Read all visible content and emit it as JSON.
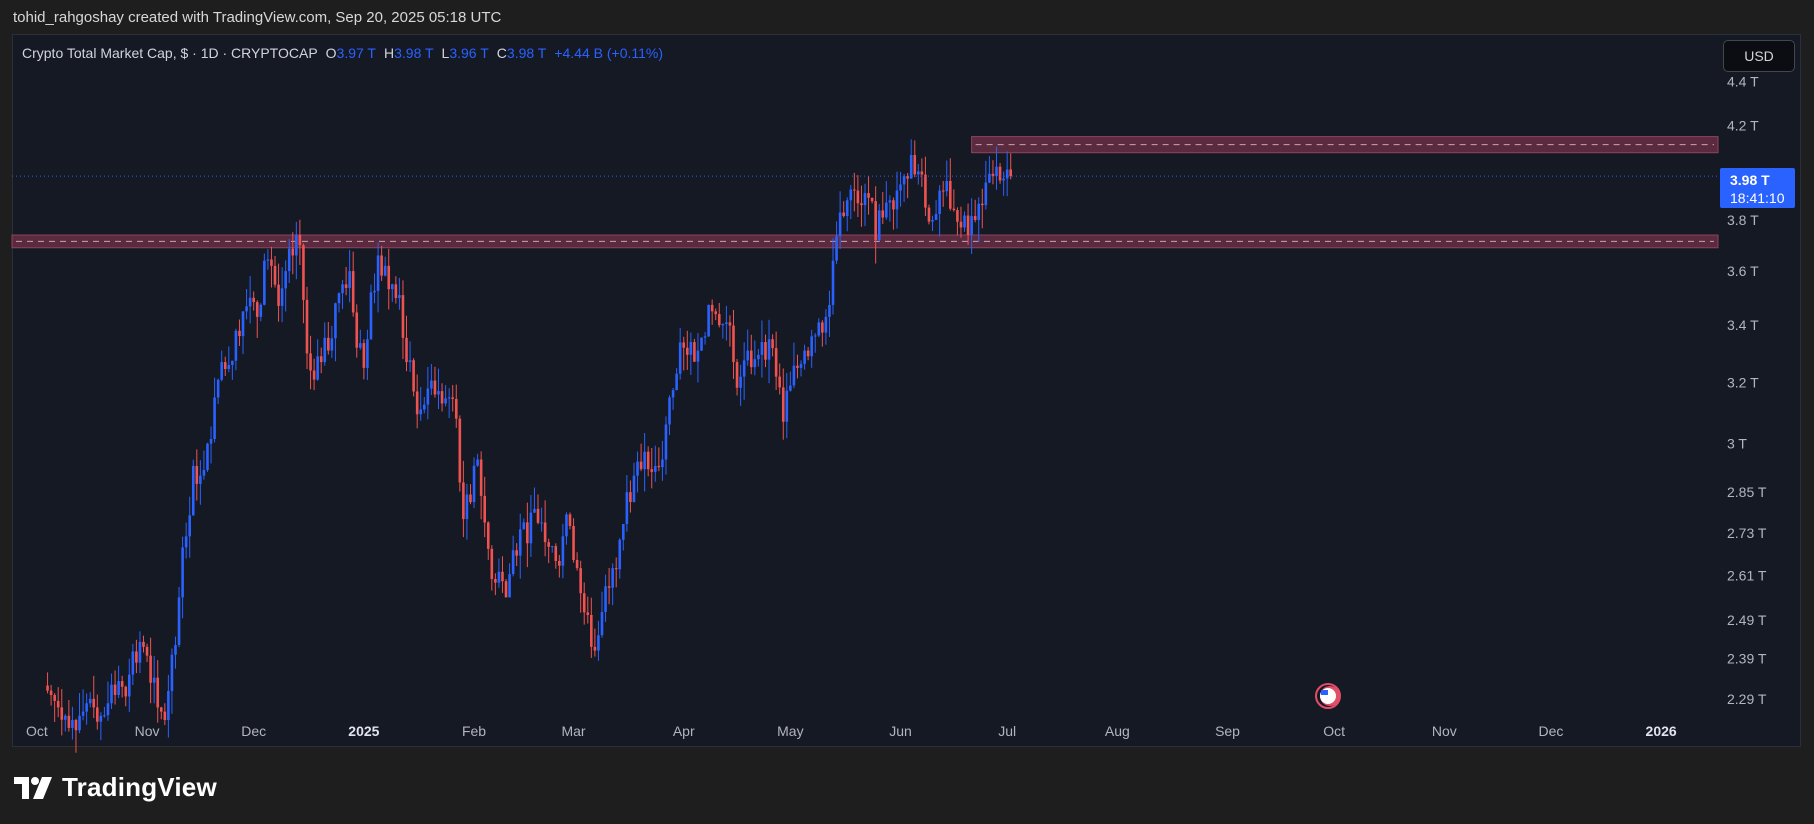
{
  "header": {
    "caption": "tohid_rahgoshay created with TradingView.com, Sep 20, 2025 05:18 UTC"
  },
  "legend": {
    "title": "Crypto Total Market Cap, $ · 1D · CRYPTOCAP",
    "o_label": "O",
    "o_value": "3.97 T",
    "h_label": "H",
    "h_value": "3.98 T",
    "l_label": "L",
    "l_value": "3.96 T",
    "c_label": "C",
    "c_value": "3.98 T",
    "change": "+4.44 B (+0.11%)"
  },
  "currency_button": "USD",
  "price_label": {
    "price": "3.98 T",
    "countdown": "18:41:10"
  },
  "brand": {
    "name": "TradingView"
  },
  "colors": {
    "up": "#2962ff",
    "down": "#ef5350",
    "zone_fill": "#5b2a3e",
    "zone_border": "#8a4560",
    "background": "#151924",
    "axis_text": "#b2b5be"
  },
  "chart_data": {
    "type": "candlestick",
    "title": "Crypto Total Market Cap, $ · 1D · CRYPTOCAP",
    "ylabel": "",
    "xlabel": "",
    "y_scale": "log",
    "ylim": [
      2.24,
      4.5
    ],
    "y_ticks": [
      {
        "value": 4.4,
        "label": "4.4 T"
      },
      {
        "value": 4.2,
        "label": "4.2 T"
      },
      {
        "value": 3.8,
        "label": "3.8 T"
      },
      {
        "value": 3.6,
        "label": "3.6 T"
      },
      {
        "value": 3.4,
        "label": "3.4 T"
      },
      {
        "value": 3.2,
        "label": "3.2 T"
      },
      {
        "value": 3.0,
        "label": "3 T"
      },
      {
        "value": 2.85,
        "label": "2.85 T"
      },
      {
        "value": 2.73,
        "label": "2.73 T"
      },
      {
        "value": 2.61,
        "label": "2.61 T"
      },
      {
        "value": 2.49,
        "label": "2.49 T"
      },
      {
        "value": 2.39,
        "label": "2.39 T"
      },
      {
        "value": 2.29,
        "label": "2.29 T"
      }
    ],
    "x_range": [
      "2024-09-24",
      "2026-01-17"
    ],
    "x_ticks": [
      {
        "date": "2024-10-01",
        "label": "Oct",
        "bold": false
      },
      {
        "date": "2024-11-01",
        "label": "Nov",
        "bold": false
      },
      {
        "date": "2024-12-01",
        "label": "Dec",
        "bold": false
      },
      {
        "date": "2025-01-01",
        "label": "2025",
        "bold": true
      },
      {
        "date": "2025-02-01",
        "label": "Feb",
        "bold": false
      },
      {
        "date": "2025-03-01",
        "label": "Mar",
        "bold": false
      },
      {
        "date": "2025-04-01",
        "label": "Apr",
        "bold": false
      },
      {
        "date": "2025-05-01",
        "label": "May",
        "bold": false
      },
      {
        "date": "2025-06-01",
        "label": "Jun",
        "bold": false
      },
      {
        "date": "2025-07-01",
        "label": "Jul",
        "bold": false
      },
      {
        "date": "2025-08-01",
        "label": "Aug",
        "bold": false
      },
      {
        "date": "2025-09-01",
        "label": "Sep",
        "bold": false
      },
      {
        "date": "2025-10-01",
        "label": "Oct",
        "bold": false
      },
      {
        "date": "2025-11-01",
        "label": "Nov",
        "bold": false
      },
      {
        "date": "2025-12-01",
        "label": "Dec",
        "bold": false
      },
      {
        "date": "2026-01-01",
        "label": "2026",
        "bold": true
      }
    ],
    "last_price": 3.98,
    "closes_start_date": "2024-10-04",
    "closes_step_days": 2,
    "closes": [
      2.3,
      2.27,
      2.25,
      2.24,
      2.25,
      2.28,
      2.27,
      2.25,
      2.28,
      2.3,
      2.32,
      2.35,
      2.38,
      2.42,
      2.33,
      2.27,
      2.24,
      2.4,
      2.55,
      2.72,
      2.93,
      2.9,
      3.0,
      3.15,
      3.27,
      3.26,
      3.38,
      3.45,
      3.5,
      3.43,
      3.64,
      3.62,
      3.47,
      3.6,
      3.66,
      3.7,
      3.3,
      3.21,
      3.27,
      3.31,
      3.48,
      3.55,
      3.6,
      3.32,
      3.25,
      3.52,
      3.66,
      3.62,
      3.55,
      3.51,
      3.27,
      3.17,
      3.11,
      3.18,
      3.16,
      3.13,
      3.15,
      3.08,
      2.77,
      2.82,
      2.95,
      2.76,
      2.6,
      2.62,
      2.55,
      2.68,
      2.74,
      2.7,
      2.8,
      2.76,
      2.69,
      2.65,
      2.72,
      2.75,
      2.63,
      2.51,
      2.42,
      2.45,
      2.58,
      2.63,
      2.71,
      2.85,
      2.9,
      2.92,
      2.92,
      2.93,
      2.95,
      3.15,
      3.23,
      3.32,
      3.34,
      3.31,
      3.36,
      3.45,
      3.4,
      3.41,
      3.27,
      3.22,
      3.31,
      3.28,
      3.34,
      3.35,
      3.22,
      3.07,
      3.19,
      3.25,
      3.31,
      3.36,
      3.41,
      3.43,
      3.64,
      3.83,
      3.88,
      3.92,
      3.86,
      3.89,
      3.72,
      3.81,
      3.88,
      3.92,
      3.98,
      4.07,
      4.0,
      3.85,
      3.8,
      3.92,
      3.96,
      3.84,
      3.77,
      3.74,
      3.8,
      3.86,
      3.99,
      4.02,
      3.97,
      3.98
    ],
    "zones": [
      {
        "from": 4.08,
        "to": 4.15,
        "start_date": "2025-06-21",
        "extends_right": true
      },
      {
        "from": 3.69,
        "to": 3.74,
        "start_date": "2024-09-24",
        "extends_right": true
      }
    ],
    "grid": false,
    "legend_position": "top-left"
  }
}
